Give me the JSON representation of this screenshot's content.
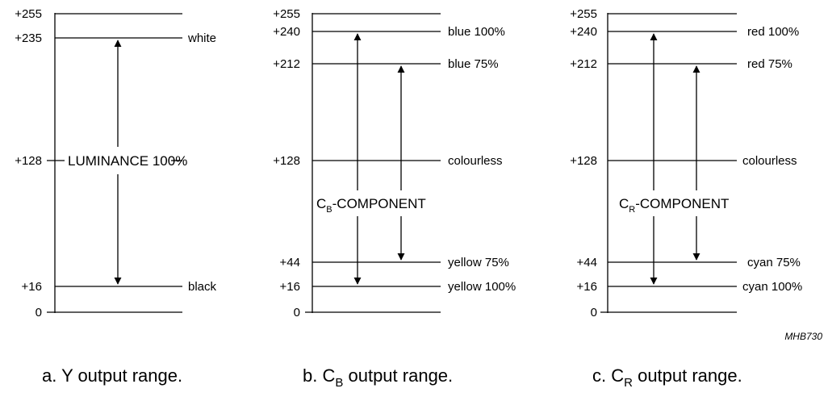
{
  "panels": [
    {
      "id": "y",
      "ticks": [
        "+255",
        "+235",
        "+128",
        "+16",
        "0"
      ],
      "descriptions": {
        "white": "white",
        "black": "black"
      },
      "center_label": "LUMINANCE 100%",
      "caption": {
        "prefix": "a.  Y output range."
      }
    },
    {
      "id": "cb",
      "ticks": [
        "+255",
        "+240",
        "+212",
        "+128",
        "+44",
        "+16",
        "0"
      ],
      "descriptions": {
        "c100": "blue 100%",
        "c75": "blue 75%",
        "colourless": "colourless",
        "o75": "yellow 75%",
        "o100": "yellow 100%"
      },
      "component_label": {
        "main": "C",
        "sub": "B",
        "rest": "-COMPONENT"
      },
      "caption": {
        "prefix": "b.  C",
        "sub": "B",
        "rest": " output range."
      }
    },
    {
      "id": "cr",
      "ticks": [
        "+255",
        "+240",
        "+212",
        "+128",
        "+44",
        "+16",
        "0"
      ],
      "descriptions": {
        "c100": "red 100%",
        "c75": "red 75%",
        "colourless": "colourless",
        "o75": "cyan 75%",
        "o100": "cyan 100%"
      },
      "component_label": {
        "main": "C",
        "sub": "R",
        "rest": "-COMPONENT"
      },
      "caption": {
        "prefix": "c.  C",
        "sub": "R",
        "rest": " output range."
      }
    }
  ],
  "figure_code": "MHB730"
}
